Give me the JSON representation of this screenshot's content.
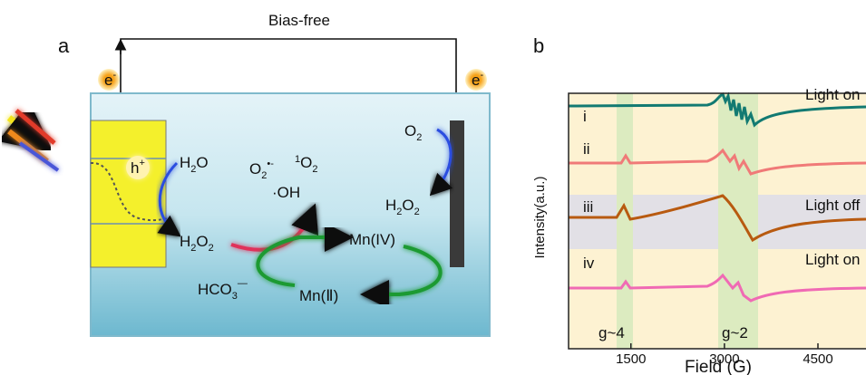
{
  "panel_a": {
    "label": "a",
    "bias": "Bias-free",
    "electron_left": [
      "e",
      "-"
    ],
    "electron_right": [
      "e",
      "-"
    ],
    "hole": [
      "h",
      "+"
    ],
    "water_left": [
      "H",
      "2",
      "O"
    ],
    "peroxide_left": [
      "H",
      "2",
      "O",
      "2"
    ],
    "superoxide": [
      "O",
      "2",
      "•-"
    ],
    "singlet_oxygen": [
      "1",
      "O",
      "2"
    ],
    "hydroxyl": "·OH",
    "mn_iv": "Mn(IV)",
    "mn_ii": "Mn(Ⅱ)",
    "bicarbonate": [
      "HCO",
      "3",
      "—"
    ],
    "oxygen_right": [
      "O",
      "2"
    ],
    "peroxide_right": [
      "H",
      "2",
      "O",
      "2"
    ]
  },
  "panel_b": {
    "label": "b",
    "xlabel": "Field (G)",
    "ylabel": "Intensity(a.u.)",
    "xlim": [
      500,
      5300
    ],
    "xticks": [
      1500,
      3000,
      4500
    ],
    "traces": [
      {
        "label": "i",
        "condition": "Light on"
      },
      {
        "label": "ii"
      },
      {
        "label": "iii",
        "condition": "Light off"
      },
      {
        "label": "iv",
        "condition": "Light on"
      }
    ],
    "bands": [
      "g~4",
      "g~2"
    ]
  }
}
